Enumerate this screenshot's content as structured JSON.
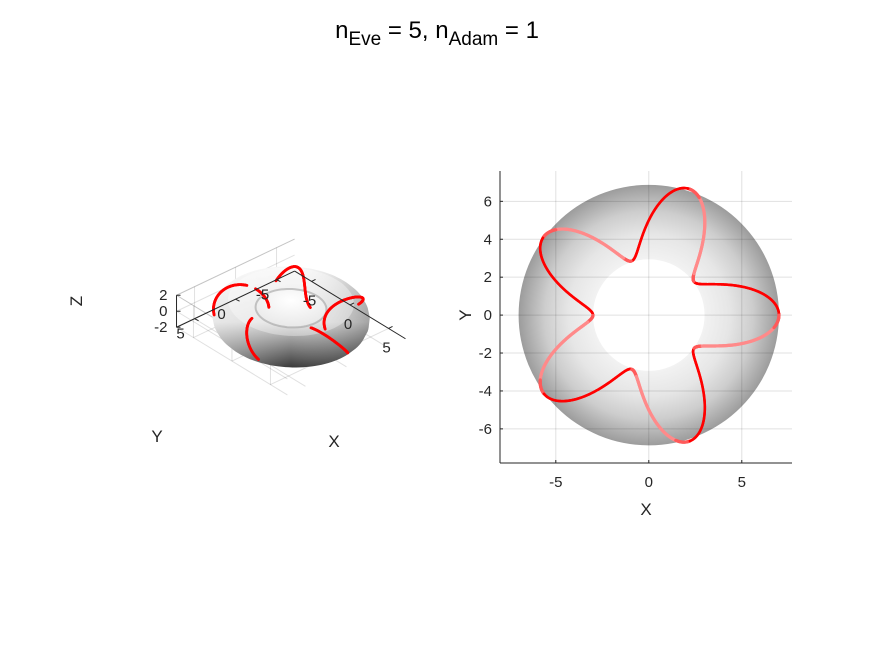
{
  "figure": {
    "title_base": "n",
    "title_sub1": "Eve",
    "title_mid": " = 5, n",
    "title_sub2": "Adam",
    "title_end": " = 1"
  },
  "parameters": {
    "n_eve": 5,
    "n_adam": 1,
    "major_radius": 5,
    "minor_radius": 2
  },
  "chart_data": [
    {
      "type": "surface3d",
      "view": "perspective-3d",
      "xlabel": "X",
      "ylabel": "Y",
      "zlabel": "Z",
      "x_ticks": [
        -5,
        0,
        5
      ],
      "y_ticks": [
        -5,
        0,
        5
      ],
      "z_ticks": [
        -2,
        0,
        2
      ],
      "x_tick_labels": [
        "-5",
        "0",
        "5"
      ],
      "y_tick_labels": [
        "-5",
        "0",
        "5"
      ],
      "z_tick_labels": [
        "-2",
        "0",
        "2"
      ],
      "xlim": [
        -7,
        7
      ],
      "ylim": [
        -7,
        7
      ],
      "zlim": [
        -2,
        2
      ],
      "grid": true,
      "surface_color": "#b0b0b0",
      "curve_color": "#ff0000"
    },
    {
      "type": "surface-topview",
      "xlabel": "X",
      "ylabel": "Y",
      "x_ticks": [
        -5,
        0,
        5
      ],
      "y_ticks": [
        -6,
        -4,
        -2,
        0,
        2,
        4,
        6
      ],
      "x_tick_labels": [
        "-5",
        "0",
        "5"
      ],
      "y_tick_labels": [
        "-6",
        "-4",
        "-2",
        "0",
        "2",
        "4",
        "6"
      ],
      "xlim": [
        -8,
        7.7
      ],
      "ylim": [
        -7.8,
        7.6
      ],
      "grid": true,
      "surface_color": "#b0b0b0",
      "curve_color": "#ff0000"
    }
  ]
}
